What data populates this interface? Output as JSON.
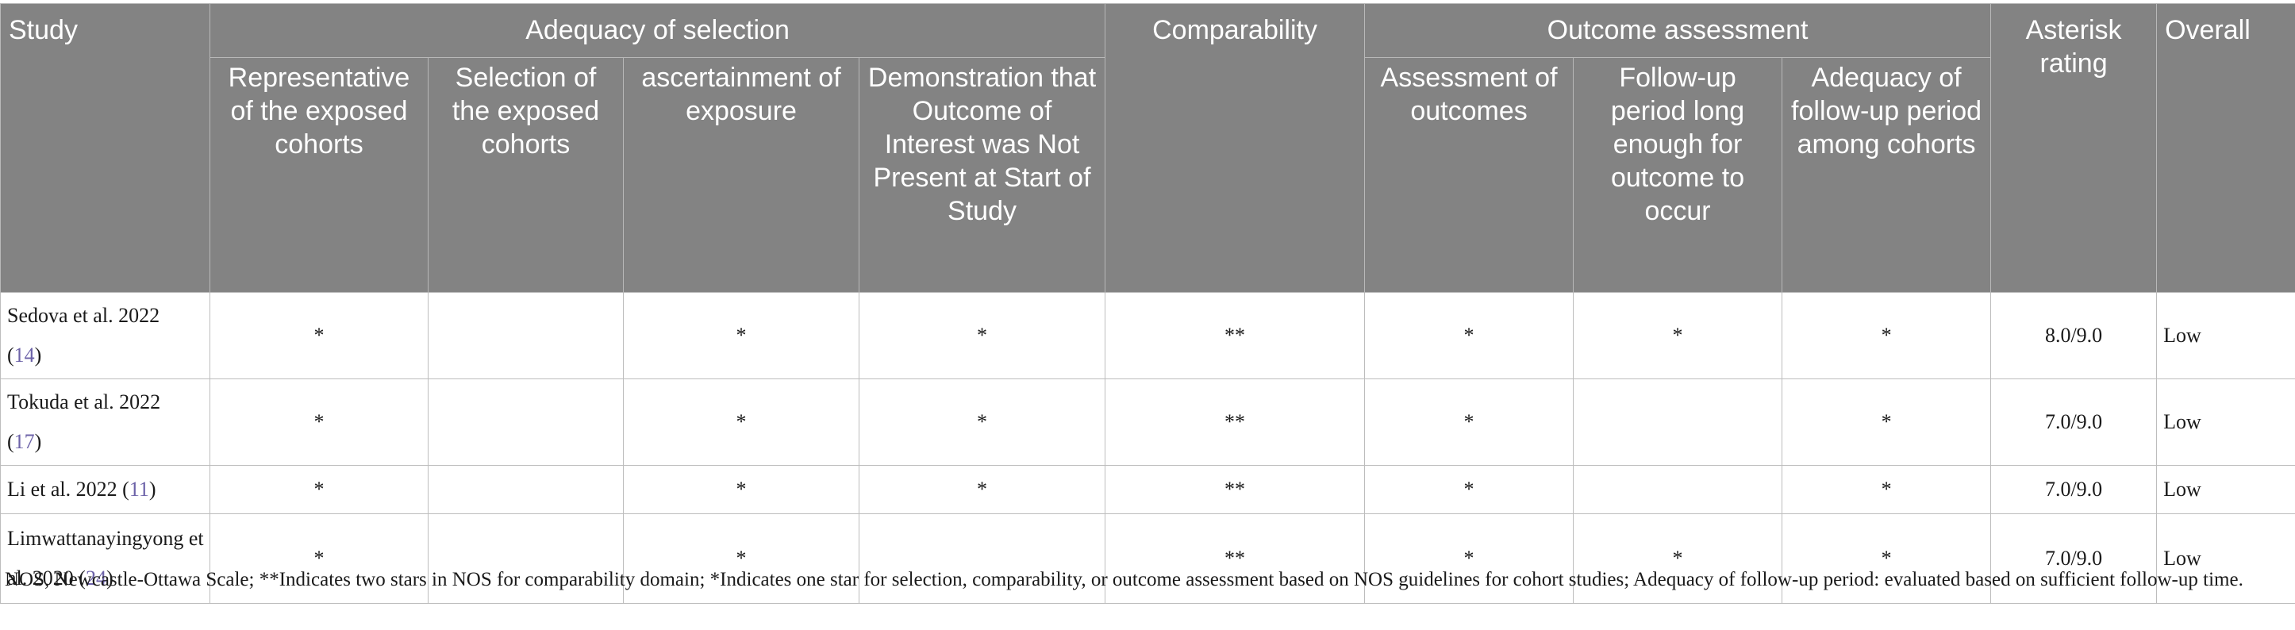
{
  "headers": {
    "study": "Study",
    "adequacy": "Adequacy of selection",
    "comparability": "Comparability",
    "outcome": "Outcome assessment",
    "asterisk": "Asterisk rating",
    "overall": "Overall",
    "sub": {
      "representative": "Representative of the exposed cohorts",
      "selection": "Selection of the exposed cohorts",
      "ascertainment": "ascertainment of exposure",
      "demonstration": "Demonstration that Outcome of Interest was Not Present at Start of Study",
      "assessment": "Assessment of outcomes",
      "followup": "Follow-up period long enough for outcome to occur",
      "adequacy_followup": "Adequacy of follow-up period among cohorts"
    }
  },
  "rows": [
    {
      "study": "Sedova et al. 2022",
      "ref": "14",
      "representative": "*",
      "selection": "",
      "ascertainment": "*",
      "demonstration": "*",
      "comparability": "**",
      "assessment": "*",
      "followup": "*",
      "adequacy_followup": "*",
      "rating": "8.0/9.0",
      "overall": "Low"
    },
    {
      "study": "Tokuda et al. 2022",
      "ref": "17",
      "representative": "*",
      "selection": "",
      "ascertainment": "*",
      "demonstration": "*",
      "comparability": "**",
      "assessment": "*",
      "followup": "",
      "adequacy_followup": "*",
      "rating": "7.0/9.0",
      "overall": "Low"
    },
    {
      "study": "Li et al. 2022",
      "ref": "11",
      "representative": "*",
      "selection": "",
      "ascertainment": "*",
      "demonstration": "*",
      "comparability": "**",
      "assessment": "*",
      "followup": "",
      "adequacy_followup": "*",
      "rating": "7.0/9.0",
      "overall": "Low"
    },
    {
      "study": "Limwattanayingyong et al. 2020",
      "ref": "24",
      "representative": "*",
      "selection": "",
      "ascertainment": "*",
      "demonstration": "",
      "comparability": "**",
      "assessment": "*",
      "followup": "*",
      "adequacy_followup": "*",
      "rating": "7.0/9.0",
      "overall": "Low"
    }
  ],
  "footnote": "NOS, Newcastle-Ottawa Scale; **Indicates two stars in NOS for comparability domain; *Indicates one star for selection, comparability, or outcome assessment based on NOS guidelines for cohort studies; Adequacy of follow-up period: evaluated based on sufficient follow-up time."
}
